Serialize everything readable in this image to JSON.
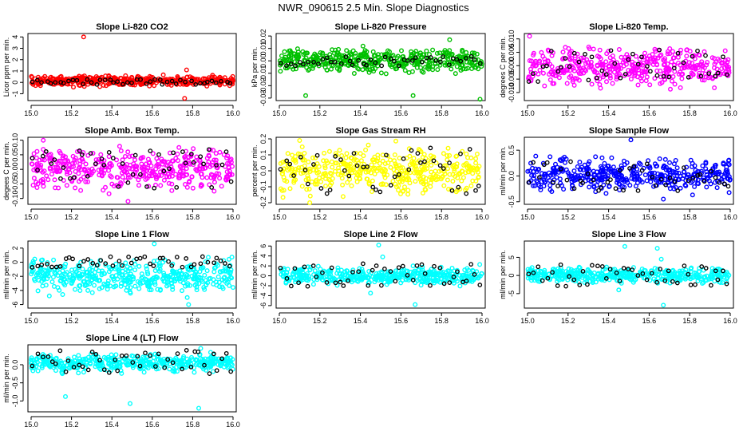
{
  "figure": {
    "title": "NWR_090615  2.5 Min. Slope Diagnostics"
  },
  "chart_data": [
    {
      "type": "scatter",
      "title": "Slope Li-820 CO2",
      "ylabel": "Licor ppm per min.",
      "color": "#ff0000",
      "xlim": [
        15.0,
        16.0
      ],
      "ylim": [
        -1.6,
        4.3
      ],
      "yticks": [
        "-1",
        "0",
        "1",
        "2",
        "3",
        "4"
      ],
      "ytick_values": [
        -1,
        0,
        1,
        2,
        3,
        4
      ],
      "xticks": [
        "15.0",
        "15.2",
        "15.4",
        "15.6",
        "15.8",
        "16.0"
      ],
      "xtick_values": [
        15.0,
        15.2,
        15.4,
        15.6,
        15.8,
        16.0
      ],
      "typical_range": [
        -0.4,
        0.7
      ],
      "black_range": [
        -0.2,
        0.3
      ],
      "outliers": [
        {
          "x": 15.26,
          "y": 4.0
        },
        {
          "x": 15.76,
          "y": -1.4
        },
        {
          "x": 15.77,
          "y": 1.1
        }
      ]
    },
    {
      "type": "scatter",
      "title": "Slope Li-820 Pressure",
      "ylabel": "kPa per min.",
      "color": "#00c000",
      "xlim": [
        15.0,
        16.0
      ],
      "ylim": [
        -0.032,
        0.022
      ],
      "yticks": [
        "-0.03",
        "-0.02",
        "-0.01",
        "0.00",
        "0.01",
        "0.02"
      ],
      "ytick_values": [
        -0.03,
        -0.02,
        -0.01,
        0.0,
        0.01,
        0.02
      ],
      "xticks": [
        "15.0",
        "15.2",
        "15.4",
        "15.6",
        "15.8",
        "16.0"
      ],
      "xtick_values": [
        15.0,
        15.2,
        15.4,
        15.6,
        15.8,
        16.0
      ],
      "typical_range": [
        -0.012,
        0.012
      ],
      "black_range": [
        -0.004,
        0.004
      ],
      "outliers": [
        {
          "x": 15.99,
          "y": -0.031
        },
        {
          "x": 15.13,
          "y": -0.028
        },
        {
          "x": 15.66,
          "y": -0.028
        },
        {
          "x": 15.84,
          "y": 0.017
        }
      ]
    },
    {
      "type": "scatter",
      "title": "Slope Li-820 Temp.",
      "ylabel": "degrees C per min.",
      "color": "#ff00ff",
      "xlim": [
        15.0,
        16.0
      ],
      "ylim": [
        -0.013,
        0.012
      ],
      "yticks": [
        "-0.010",
        "-0.005",
        "0.000",
        "0.005",
        "0.010"
      ],
      "ytick_values": [
        -0.01,
        -0.005,
        0.0,
        0.005,
        0.01
      ],
      "xticks": [
        "15.0",
        "15.2",
        "15.4",
        "15.6",
        "15.8",
        "16.0"
      ],
      "xtick_values": [
        15.0,
        15.2,
        15.4,
        15.6,
        15.8,
        16.0
      ],
      "typical_range": [
        -0.009,
        0.008
      ],
      "black_range": [
        -0.006,
        0.006
      ],
      "outliers": [
        {
          "x": 15.01,
          "y": 0.011
        }
      ]
    },
    {
      "type": "scatter",
      "title": "Slope Amb. Box Temp.",
      "ylabel": "degees C per min.",
      "color": "#ff00ff",
      "xlim": [
        15.0,
        16.0
      ],
      "ylim": [
        -0.12,
        0.11
      ],
      "yticks": [
        "-0.10",
        "-0.05",
        "0.00",
        "0.05",
        "0.10"
      ],
      "ytick_values": [
        -0.1,
        -0.05,
        0.0,
        0.05,
        0.1
      ],
      "xticks": [
        "15.0",
        "15.2",
        "15.4",
        "15.6",
        "15.8",
        "16.0"
      ],
      "xtick_values": [
        15.0,
        15.2,
        15.4,
        15.6,
        15.8,
        16.0
      ],
      "typical_range": [
        -0.08,
        0.08
      ],
      "black_range": [
        -0.07,
        0.07
      ],
      "outliers": [
        {
          "x": 15.06,
          "y": 0.1
        },
        {
          "x": 15.48,
          "y": -0.11
        }
      ]
    },
    {
      "type": "scatter",
      "title": "Slope Gas Stream RH",
      "ylabel": "percent per min.",
      "color": "#ffff00",
      "xlim": [
        15.0,
        16.0
      ],
      "ylim": [
        -0.21,
        0.21
      ],
      "yticks": [
        "-0.2",
        "-0.1",
        "0.0",
        "0.1",
        "0.2"
      ],
      "ytick_values": [
        -0.2,
        -0.1,
        0.0,
        0.1,
        0.2
      ],
      "xticks": [
        "15.0",
        "15.2",
        "15.4",
        "15.6",
        "15.8",
        "16.0"
      ],
      "xtick_values": [
        15.0,
        15.2,
        15.4,
        15.6,
        15.8,
        16.0
      ],
      "typical_range": [
        -0.17,
        0.17
      ],
      "black_range": [
        -0.15,
        0.15
      ],
      "outliers": [
        {
          "x": 15.15,
          "y": -0.2
        },
        {
          "x": 15.1,
          "y": 0.19
        }
      ]
    },
    {
      "type": "scatter",
      "title": "Slope Sample Flow",
      "ylabel": "ml/min per min.",
      "color": "#0000ff",
      "xlim": [
        15.0,
        16.0
      ],
      "ylim": [
        -0.55,
        0.75
      ],
      "yticks": [
        "-0.5",
        "0.0",
        "0.5"
      ],
      "ytick_values": [
        -0.5,
        0.0,
        0.5
      ],
      "xticks": [
        "15.0",
        "15.2",
        "15.4",
        "15.6",
        "15.8",
        "16.0"
      ],
      "xtick_values": [
        15.0,
        15.2,
        15.4,
        15.6,
        15.8,
        16.0
      ],
      "typical_range": [
        -0.35,
        0.4
      ],
      "black_range": [
        -0.3,
        0.3
      ],
      "outliers": [
        {
          "x": 15.51,
          "y": 0.7
        },
        {
          "x": 15.67,
          "y": -0.45
        }
      ]
    },
    {
      "type": "scatter",
      "title": "Slope Line 1 Flow",
      "ylabel": "ml/min per min.",
      "color": "#00ffff",
      "xlim": [
        15.0,
        16.0
      ],
      "ylim": [
        -6.5,
        3.0
      ],
      "yticks": [
        "-6",
        "-4",
        "-2",
        "0",
        "2"
      ],
      "ytick_values": [
        -6,
        -4,
        -2,
        0,
        2
      ],
      "xticks": [
        "15.0",
        "15.2",
        "15.4",
        "15.6",
        "15.8",
        "16.0"
      ],
      "xtick_values": [
        15.0,
        15.2,
        15.4,
        15.6,
        15.8,
        16.0
      ],
      "typical_range": [
        -5.0,
        0.8
      ],
      "black_range": [
        -0.8,
        0.8
      ],
      "outliers": [
        {
          "x": 15.61,
          "y": 2.6
        },
        {
          "x": 15.78,
          "y": -6.0
        }
      ]
    },
    {
      "type": "scatter",
      "title": "Slope Line 2 Flow",
      "ylabel": "ml/min per min.",
      "color": "#00ffff",
      "xlim": [
        15.0,
        16.0
      ],
      "ylim": [
        -6.5,
        7.0
      ],
      "yticks": [
        "-6",
        "-4",
        "-2",
        "0",
        "2",
        "4",
        "6"
      ],
      "ytick_values": [
        -6,
        -4,
        -2,
        0,
        2,
        4,
        6
      ],
      "xticks": [
        "15.0",
        "15.2",
        "15.4",
        "15.6",
        "15.8",
        "16.0"
      ],
      "xtick_values": [
        15.0,
        15.2,
        15.4,
        15.6,
        15.8,
        16.0
      ],
      "typical_range": [
        -2.0,
        2.0
      ],
      "black_range": [
        -2.5,
        2.5
      ],
      "outliers": [
        {
          "x": 15.49,
          "y": 6.2
        },
        {
          "x": 15.51,
          "y": 3.8
        },
        {
          "x": 15.66,
          "y": 2.0
        },
        {
          "x": 15.67,
          "y": -5.8
        },
        {
          "x": 15.45,
          "y": -3.5
        }
      ]
    },
    {
      "type": "scatter",
      "title": "Slope Line 3 Flow",
      "ylabel": "ml/min per min.",
      "color": "#00ffff",
      "xlim": [
        15.0,
        16.0
      ],
      "ylim": [
        -9.0,
        9.5
      ],
      "yticks": [
        "-5",
        "0",
        "5"
      ],
      "ytick_values": [
        -5,
        0,
        5
      ],
      "xticks": [
        "15.0",
        "15.2",
        "15.4",
        "15.6",
        "15.8",
        "16.0"
      ],
      "xtick_values": [
        15.0,
        15.2,
        15.4,
        15.6,
        15.8,
        16.0
      ],
      "typical_range": [
        -2.5,
        2.5
      ],
      "black_range": [
        -3.0,
        3.0
      ],
      "outliers": [
        {
          "x": 15.48,
          "y": 8.0
        },
        {
          "x": 15.64,
          "y": 7.5
        },
        {
          "x": 15.66,
          "y": 4.5
        },
        {
          "x": 15.67,
          "y": -8.2
        },
        {
          "x": 15.45,
          "y": -4.0
        }
      ]
    },
    {
      "type": "scatter",
      "title": "Slope Line 4 (LT) Flow",
      "ylabel": "ml/min per min.",
      "color": "#00ffff",
      "xlim": [
        15.0,
        16.0
      ],
      "ylim": [
        -1.3,
        0.55
      ],
      "yticks": [
        "-1.0",
        "-0.5",
        "0.0"
      ],
      "ytick_values": [
        -1.0,
        -0.5,
        0.0
      ],
      "xticks": [
        "15.0",
        "15.2",
        "15.4",
        "15.6",
        "15.8",
        "16.0"
      ],
      "xtick_values": [
        15.0,
        15.2,
        15.4,
        15.6,
        15.8,
        16.0
      ],
      "typical_range": [
        -0.25,
        0.35
      ],
      "black_range": [
        -0.25,
        0.4
      ],
      "outliers": [
        {
          "x": 15.17,
          "y": -0.88
        },
        {
          "x": 15.49,
          "y": -1.07
        },
        {
          "x": 15.83,
          "y": -1.2
        },
        {
          "x": 15.84,
          "y": 0.45
        }
      ]
    }
  ]
}
